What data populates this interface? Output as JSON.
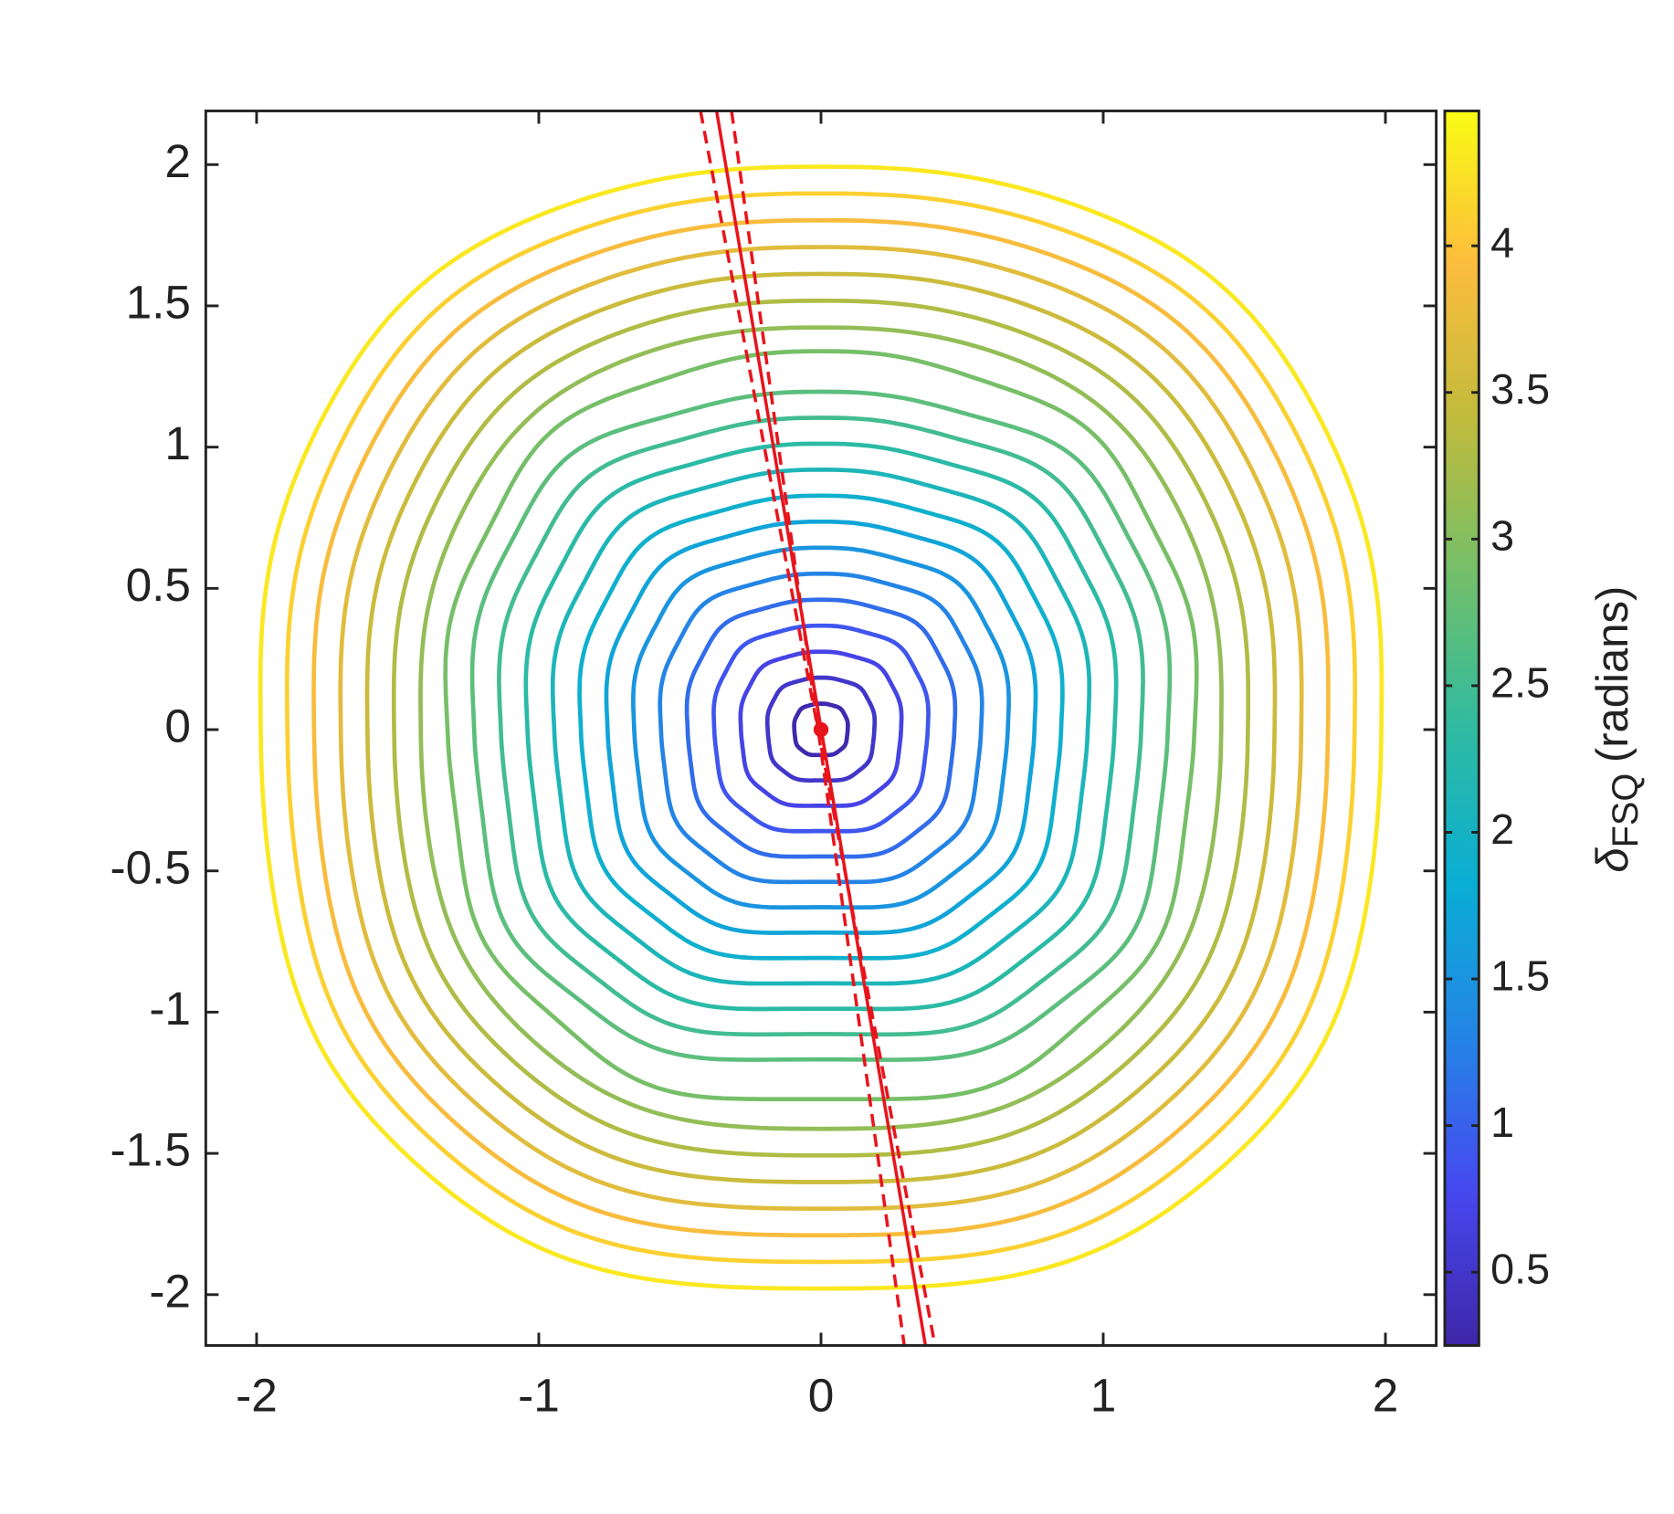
{
  "chart_data": {
    "type": "contour",
    "xlim": [
      -2.18,
      2.18
    ],
    "ylim": [
      -2.18,
      2.19
    ],
    "xticks": [
      -2,
      -1,
      0,
      1,
      2
    ],
    "yticks": [
      -2,
      -1.5,
      -1,
      -0.5,
      0,
      0.5,
      1,
      1.5,
      2
    ],
    "contour_levels": [
      0.3,
      0.5,
      0.7,
      0.9,
      1.1,
      1.3,
      1.5,
      1.7,
      1.9,
      2.1,
      2.3,
      2.5,
      2.7,
      2.9,
      3.1,
      3.3,
      3.5,
      3.7,
      3.9,
      4.1,
      4.3
    ],
    "colormap": [
      "#3e26a8",
      "#4748f0",
      "#2484e6",
      "#0aaed4",
      "#2fbba0",
      "#73bf6a",
      "#c0bb3c",
      "#fcbc3d",
      "#f9fb14"
    ],
    "lines": [
      {
        "x": [
          -0.37,
          0.37
        ],
        "y": [
          2.19,
          -2.18
        ],
        "color": "#e8141c",
        "style": "solid"
      },
      {
        "x": [
          -0.427,
          0.404
        ],
        "y": [
          2.19,
          -2.18
        ],
        "color": "#e8141c",
        "style": "dashed"
      },
      {
        "x": [
          -0.317,
          0.295
        ],
        "y": [
          2.19,
          -2.18
        ],
        "color": "#e8141c",
        "style": "dashed"
      }
    ],
    "center_point": {
      "x": 0,
      "y": 0,
      "color": "#e8141c"
    },
    "colorbar": {
      "label_symbol": "δ",
      "label_subscript": "FSQ",
      "label_text": "(radians)",
      "lim": [
        0.25,
        4.46
      ],
      "ticks": [
        0.5,
        1,
        1.5,
        2,
        2.5,
        3,
        3.5,
        4
      ]
    }
  }
}
